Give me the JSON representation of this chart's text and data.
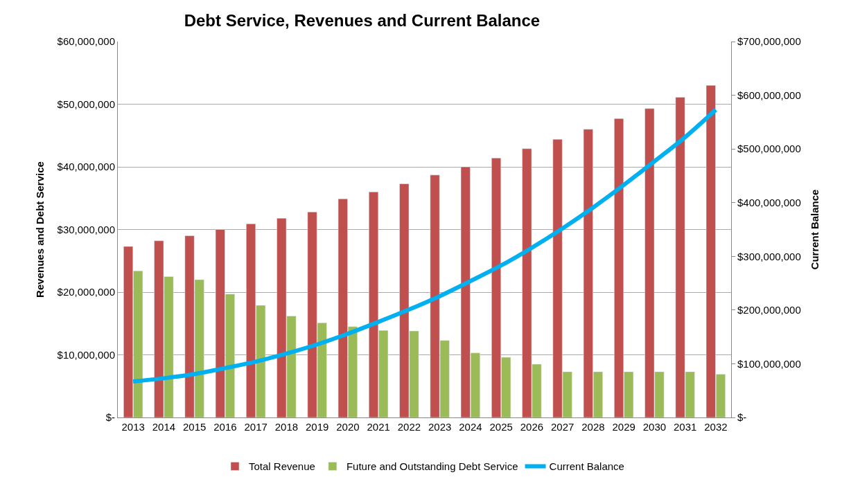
{
  "chart_data": {
    "type": "bar",
    "title": "Debt Service, Revenues and Current Balance",
    "ylabel": "Revenues and Debt Service",
    "y2label": "Current Balance",
    "categories": [
      "2013",
      "2014",
      "2015",
      "2016",
      "2017",
      "2018",
      "2019",
      "2020",
      "2021",
      "2022",
      "2023",
      "2024",
      "2025",
      "2026",
      "2027",
      "2028",
      "2029",
      "2030",
      "2031",
      "2032"
    ],
    "series": [
      {
        "name": "Total Revenue",
        "color": "#c0504d",
        "values": [
          27300000,
          28200000,
          29000000,
          30000000,
          30900000,
          31800000,
          32800000,
          34900000,
          36000000,
          37300000,
          38700000,
          40000000,
          41400000,
          42900000,
          44400000,
          46000000,
          47700000,
          49300000,
          51100000,
          53000000
        ]
      },
      {
        "name": "Future and Outstanding Debt Service",
        "color": "#9bbb59",
        "values": [
          23400000,
          22500000,
          22000000,
          19700000,
          17900000,
          16200000,
          15100000,
          14500000,
          13900000,
          13800000,
          12300000,
          10300000,
          9600000,
          8500000,
          7300000,
          7300000,
          7300000,
          7300000,
          7300000,
          6900000
        ]
      },
      {
        "name": "Current Balance",
        "type": "line",
        "axis": "y2",
        "color": "#00b0f0",
        "values": [
          67000000,
          73000000,
          81000000,
          92000000,
          104000000,
          119000000,
          136000000,
          156000000,
          178000000,
          201000000,
          226000000,
          254000000,
          283000000,
          316000000,
          352000000,
          391000000,
          433000000,
          477000000,
          522000000,
          573000000
        ]
      }
    ],
    "ylim": [
      0,
      60000000
    ],
    "yticks": [
      {
        "value": 0,
        "label": "$-"
      },
      {
        "value": 10000000,
        "label": "$10,000,000"
      },
      {
        "value": 20000000,
        "label": "$20,000,000"
      },
      {
        "value": 30000000,
        "label": "$30,000,000"
      },
      {
        "value": 40000000,
        "label": "$40,000,000"
      },
      {
        "value": 50000000,
        "label": "$50,000,000"
      },
      {
        "value": 60000000,
        "label": "$60,000,000"
      }
    ],
    "y2lim": [
      0,
      700000000
    ],
    "y2ticks": [
      {
        "value": 0,
        "label": "$-"
      },
      {
        "value": 100000000,
        "label": "$100,000,000"
      },
      {
        "value": 200000000,
        "label": "$200,000,000"
      },
      {
        "value": 300000000,
        "label": "$300,000,000"
      },
      {
        "value": 400000000,
        "label": "$400,000,000"
      },
      {
        "value": 500000000,
        "label": "$500,000,000"
      },
      {
        "value": 600000000,
        "label": "$600,000,000"
      },
      {
        "value": 700000000,
        "label": "$700,000,000"
      }
    ],
    "grid": "y",
    "legend": "bottom",
    "marker": "none",
    "line_style": "solid"
  }
}
